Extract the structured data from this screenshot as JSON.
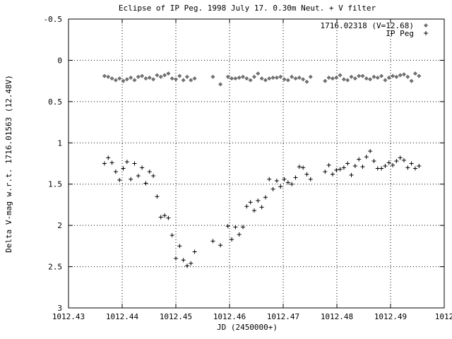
{
  "chart_data": {
    "type": "scatter",
    "title": "Eclipse of IP Peg. 1998 July 17. 0.30m Neut. + V filter",
    "xlabel": "JD (2450000+)",
    "ylabel": "Delta V-mag w.r.t. 1716.01563 (12.48V)",
    "xlim": [
      1012.43,
      1012.5
    ],
    "ylim": [
      3,
      -0.5
    ],
    "y_inverted": true,
    "grid": true,
    "legend_position": "top-right",
    "x_ticks": [
      "1012.43",
      "1012.44",
      "1012.45",
      "1012.46",
      "1012.47",
      "1012.48",
      "1012.49",
      "1012"
    ],
    "y_ticks": [
      "-0.5",
      "0",
      "0.5",
      "1",
      "1.5",
      "2",
      "2.5",
      "3"
    ],
    "series": [
      {
        "name": "1716.02318 (V=12.68)",
        "marker": "diamond",
        "x": [
          1012.4367,
          1012.4374,
          1012.4381,
          1012.4388,
          1012.4395,
          1012.4402,
          1012.4409,
          1012.4416,
          1012.4423,
          1012.443,
          1012.4437,
          1012.4444,
          1012.4451,
          1012.4458,
          1012.4465,
          1012.4472,
          1012.4479,
          1012.4486,
          1012.4493,
          1012.45,
          1012.4507,
          1012.4514,
          1012.4521,
          1012.4528,
          1012.4535,
          1012.4569,
          1012.4583,
          1012.4597,
          1012.4604,
          1012.4611,
          1012.4618,
          1012.4625,
          1012.4632,
          1012.4639,
          1012.4646,
          1012.4653,
          1012.466,
          1012.4667,
          1012.4674,
          1012.4681,
          1012.4688,
          1012.4695,
          1012.4702,
          1012.4709,
          1012.4716,
          1012.4723,
          1012.473,
          1012.4737,
          1012.4744,
          1012.4751,
          1012.4778,
          1012.4785,
          1012.4792,
          1012.4799,
          1012.4806,
          1012.4813,
          1012.482,
          1012.4827,
          1012.4834,
          1012.4841,
          1012.4848,
          1012.4855,
          1012.4862,
          1012.4869,
          1012.4876,
          1012.4883,
          1012.489,
          1012.4897,
          1012.4904,
          1012.4911,
          1012.4918,
          1012.4925,
          1012.4932,
          1012.4939,
          1012.4946,
          1012.4953
        ],
        "y": [
          0.19,
          0.2,
          0.22,
          0.24,
          0.22,
          0.25,
          0.23,
          0.21,
          0.24,
          0.2,
          0.19,
          0.22,
          0.21,
          0.23,
          0.18,
          0.2,
          0.18,
          0.16,
          0.22,
          0.23,
          0.19,
          0.24,
          0.2,
          0.24,
          0.22,
          0.2,
          0.29,
          0.2,
          0.22,
          0.22,
          0.21,
          0.2,
          0.22,
          0.24,
          0.2,
          0.16,
          0.22,
          0.24,
          0.22,
          0.21,
          0.21,
          0.2,
          0.23,
          0.24,
          0.2,
          0.22,
          0.21,
          0.23,
          0.26,
          0.2,
          0.25,
          0.21,
          0.22,
          0.21,
          0.18,
          0.23,
          0.24,
          0.2,
          0.22,
          0.19,
          0.19,
          0.22,
          0.23,
          0.2,
          0.21,
          0.19,
          0.24,
          0.21,
          0.19,
          0.2,
          0.18,
          0.17,
          0.2,
          0.25,
          0.16,
          0.19
        ]
      },
      {
        "name": "IP Peg",
        "marker": "plus",
        "x": [
          1012.4367,
          1012.4374,
          1012.4381,
          1012.4388,
          1012.4395,
          1012.4402,
          1012.4409,
          1012.4416,
          1012.4423,
          1012.443,
          1012.4437,
          1012.4444,
          1012.4451,
          1012.4458,
          1012.4465,
          1012.4472,
          1012.4479,
          1012.4486,
          1012.4493,
          1012.45,
          1012.4507,
          1012.4514,
          1012.4521,
          1012.4528,
          1012.4535,
          1012.4569,
          1012.4583,
          1012.4597,
          1012.4604,
          1012.4611,
          1012.4618,
          1012.4625,
          1012.4632,
          1012.4639,
          1012.4646,
          1012.4653,
          1012.466,
          1012.4667,
          1012.4674,
          1012.4681,
          1012.4688,
          1012.4695,
          1012.4702,
          1012.4709,
          1012.4716,
          1012.4723,
          1012.473,
          1012.4737,
          1012.4744,
          1012.4751,
          1012.4778,
          1012.4785,
          1012.4792,
          1012.4799,
          1012.4806,
          1012.4813,
          1012.482,
          1012.4827,
          1012.4834,
          1012.4841,
          1012.4848,
          1012.4855,
          1012.4862,
          1012.4869,
          1012.4876,
          1012.4883,
          1012.489,
          1012.4897,
          1012.4904,
          1012.4911,
          1012.4918,
          1012.4925,
          1012.4932,
          1012.4939,
          1012.4946,
          1012.4953
        ],
        "y": [
          1.25,
          1.18,
          1.24,
          1.35,
          1.45,
          1.31,
          1.23,
          1.44,
          1.25,
          1.4,
          1.3,
          1.49,
          1.35,
          1.4,
          1.65,
          1.9,
          1.88,
          1.91,
          2.12,
          2.4,
          2.25,
          2.42,
          2.49,
          2.46,
          2.32,
          2.19,
          2.24,
          2.01,
          2.17,
          2.02,
          2.11,
          2.02,
          1.77,
          1.72,
          1.82,
          1.7,
          1.78,
          1.66,
          1.44,
          1.56,
          1.46,
          1.53,
          1.44,
          1.48,
          1.5,
          1.42,
          1.29,
          1.3,
          1.38,
          1.44,
          1.35,
          1.27,
          1.38,
          1.33,
          1.32,
          1.3,
          1.25,
          1.39,
          1.28,
          1.2,
          1.29,
          1.17,
          1.1,
          1.22,
          1.31,
          1.31,
          1.28,
          1.24,
          1.27,
          1.22,
          1.18,
          1.21,
          1.3,
          1.25,
          1.31,
          1.28
        ]
      }
    ]
  }
}
